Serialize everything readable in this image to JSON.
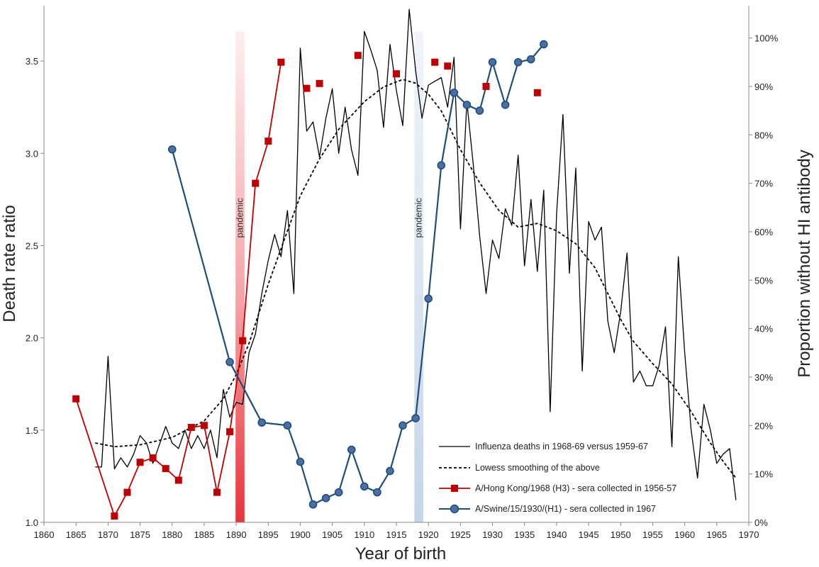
{
  "chart_data": {
    "type": "line",
    "xlabel": "Year of birth",
    "ylabel_left": "Death rate ratio",
    "ylabel_right": "Proportion without HI antibody",
    "xlim": [
      1860,
      1970
    ],
    "ylim_left": [
      1.0,
      3.8
    ],
    "ylim_right": [
      0,
      1.0667
    ],
    "x_ticks": [
      1860,
      1865,
      1870,
      1875,
      1880,
      1885,
      1890,
      1895,
      1900,
      1905,
      1910,
      1915,
      1920,
      1925,
      1930,
      1935,
      1940,
      1945,
      1950,
      1955,
      1960,
      1965,
      1970
    ],
    "y_ticks_left": [
      "1.0",
      "1.5",
      "2.0",
      "2.5",
      "3.0",
      "3.5"
    ],
    "y_ticks_left_values": [
      1.0,
      1.5,
      2.0,
      2.5,
      3.0,
      3.5
    ],
    "y_ticks_right": [
      "0%",
      "10%",
      "20%",
      "30%",
      "40%",
      "50%",
      "60%",
      "70%",
      "80%",
      "90%",
      "100%"
    ],
    "y_ticks_right_values": [
      0,
      0.1,
      0.2,
      0.3,
      0.4,
      0.5,
      0.6,
      0.7,
      0.8,
      0.9,
      1.0
    ],
    "grid": false,
    "legend_position": "bottom-right",
    "pandemic_bands": [
      {
        "label": "pandemic",
        "x_start": 1889.9,
        "x_end": 1891.3,
        "color": "#e8333a",
        "y_top_left": 3.66
      },
      {
        "label": "pandemic",
        "x_start": 1917.8,
        "x_end": 1919.2,
        "color": "#c5d5e8",
        "y_top_left": 3.66
      }
    ],
    "series": [
      {
        "name": "Influenza deaths in 1968-69 versus 1959-67",
        "axis": "left",
        "style": "thin-line",
        "color": "#000000",
        "x": [
          1868,
          1869,
          1870,
          1871,
          1872,
          1873,
          1874,
          1875,
          1876,
          1877,
          1878,
          1879,
          1880,
          1881,
          1882,
          1883,
          1884,
          1885,
          1886,
          1887,
          1888,
          1889,
          1890,
          1891,
          1892,
          1893,
          1894,
          1895,
          1896,
          1897,
          1898,
          1899,
          1900,
          1901,
          1902,
          1903,
          1904,
          1905,
          1906,
          1907,
          1908,
          1909,
          1910,
          1911,
          1912,
          1913,
          1914,
          1915,
          1916,
          1917,
          1918,
          1919,
          1920,
          1921,
          1922,
          1923,
          1924,
          1925,
          1926,
          1927,
          1928,
          1929,
          1930,
          1931,
          1932,
          1933,
          1934,
          1935,
          1936,
          1937,
          1938,
          1939,
          1940,
          1941,
          1942,
          1943,
          1944,
          1945,
          1946,
          1947,
          1948,
          1949,
          1950,
          1951,
          1952,
          1953,
          1954,
          1955,
          1956,
          1957,
          1958,
          1959,
          1960,
          1961,
          1962,
          1963,
          1964,
          1965,
          1966,
          1967,
          1968
        ],
        "values": [
          1.3,
          1.3,
          1.9,
          1.29,
          1.35,
          1.3,
          1.37,
          1.47,
          1.43,
          1.32,
          1.42,
          1.52,
          1.43,
          1.4,
          1.5,
          1.4,
          1.47,
          1.4,
          1.5,
          1.35,
          1.72,
          1.57,
          1.65,
          1.64,
          1.92,
          2.02,
          2.24,
          2.42,
          2.56,
          2.44,
          2.69,
          2.24,
          3.57,
          3.12,
          3.17,
          2.98,
          3.19,
          3.35,
          3.0,
          3.25,
          3.02,
          2.88,
          3.66,
          3.56,
          3.45,
          3.14,
          3.59,
          3.34,
          3.15,
          3.78,
          3.45,
          3.19,
          3.37,
          3.39,
          3.41,
          3.25,
          3.52,
          2.59,
          3.28,
          2.94,
          2.55,
          2.24,
          2.53,
          2.43,
          2.7,
          2.61,
          2.99,
          2.39,
          2.75,
          2.36,
          2.8,
          1.6,
          2.67,
          3.21,
          2.35,
          2.92,
          1.82,
          2.63,
          2.53,
          2.6,
          2.09,
          1.92,
          2.14,
          2.46,
          1.76,
          1.82,
          1.74,
          1.74,
          1.85,
          2.06,
          1.41,
          2.44,
          1.92,
          1.5,
          1.24,
          1.64,
          1.5,
          1.32,
          1.37,
          1.4,
          1.12
        ]
      },
      {
        "name": "Lowess smoothing of the above",
        "axis": "left",
        "style": "dashed",
        "color": "#000000",
        "x": [
          1868,
          1871,
          1875,
          1880,
          1885,
          1888,
          1890,
          1892,
          1895,
          1898,
          1900,
          1903,
          1906,
          1910,
          1913,
          1916,
          1918,
          1920,
          1922,
          1925,
          1928,
          1931,
          1934,
          1937,
          1940,
          1943,
          1946,
          1948,
          1950,
          1952,
          1955,
          1958,
          1961,
          1964,
          1966,
          1968
        ],
        "values": [
          1.43,
          1.41,
          1.42,
          1.46,
          1.55,
          1.67,
          1.8,
          1.97,
          2.29,
          2.58,
          2.77,
          2.97,
          3.13,
          3.28,
          3.36,
          3.4,
          3.38,
          3.32,
          3.23,
          3.02,
          2.84,
          2.69,
          2.6,
          2.62,
          2.58,
          2.51,
          2.38,
          2.24,
          2.1,
          1.98,
          1.86,
          1.75,
          1.6,
          1.43,
          1.33,
          1.24
        ]
      },
      {
        "name": "A/Hong Kong/1968 (H3) - sera collected in 1956-57",
        "axis": "right",
        "style": "line-square",
        "color": "#c00000",
        "line_x": [
          1865,
          1871,
          1873,
          1875,
          1877,
          1879,
          1881,
          1883,
          1885,
          1887,
          1889,
          1891,
          1893,
          1895,
          1897
        ],
        "line_values": [
          0.255,
          0.013,
          0.062,
          0.124,
          0.133,
          0.111,
          0.087,
          0.196,
          0.2,
          0.062,
          0.187,
          0.375,
          0.7,
          0.787,
          0.95
        ],
        "points_x": [
          1865,
          1871,
          1873,
          1875,
          1877,
          1879,
          1881,
          1883,
          1885,
          1887,
          1889,
          1891,
          1893,
          1895,
          1897,
          1901,
          1903,
          1909,
          1915,
          1921,
          1923,
          1929,
          1937
        ],
        "points_values": [
          0.255,
          0.013,
          0.062,
          0.124,
          0.133,
          0.111,
          0.087,
          0.196,
          0.2,
          0.062,
          0.187,
          0.375,
          0.7,
          0.787,
          0.95,
          0.896,
          0.906,
          0.964,
          0.926,
          0.95,
          0.942,
          0.9,
          0.887
        ]
      },
      {
        "name": "A/Swine/15/1930/(H1) - sera collected in 1967",
        "axis": "right",
        "style": "line-circle",
        "color": "#1f4e79",
        "x": [
          1880,
          1889,
          1894,
          1898,
          1900,
          1902,
          1904,
          1906,
          1908,
          1910,
          1912,
          1914,
          1916,
          1918,
          1920,
          1922,
          1924,
          1926,
          1928,
          1930,
          1932,
          1934,
          1936,
          1938
        ],
        "values": [
          0.77,
          0.331,
          0.206,
          0.2,
          0.125,
          0.037,
          0.05,
          0.062,
          0.15,
          0.074,
          0.062,
          0.106,
          0.2,
          0.215,
          0.462,
          0.737,
          0.887,
          0.862,
          0.85,
          0.95,
          0.862,
          0.95,
          0.956,
          0.987
        ]
      }
    ]
  },
  "legend": {
    "items": [
      {
        "label": "Influenza deaths in 1968-69 versus 1959-67"
      },
      {
        "label": "Lowess smoothing of the above"
      },
      {
        "label": "A/Hong Kong/1968 (H3) - sera collected in 1956-57"
      },
      {
        "label": "A/Swine/15/1930/(H1) - sera collected in 1967"
      }
    ]
  }
}
